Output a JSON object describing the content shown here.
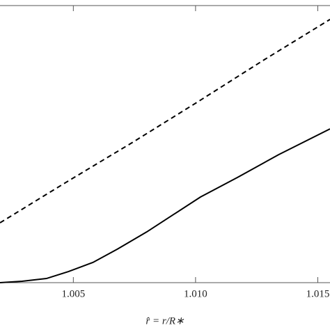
{
  "chart_data": {
    "type": "line",
    "x_label": "r̂ = r/R∗",
    "xlim": [
      1.002,
      1.0155
    ],
    "xticks": [
      1.005,
      {
        "value": 1.01,
        "label": "1.010"
      },
      1.015
    ],
    "ylim": [
      0,
      1
    ],
    "series": [
      {
        "color": "#000000",
        "line_style": "dashed",
        "x": [
          1.002,
          1.0047,
          1.0074,
          1.0101,
          1.0128,
          1.0155
        ],
        "values": [
          0.216,
          0.362,
          0.505,
          0.653,
          0.804,
          0.95
        ]
      },
      {
        "color": "#000000",
        "line_style": "solid",
        "x": [
          1.002,
          1.0029,
          1.0039,
          1.0048,
          1.0058,
          1.0068,
          1.008,
          1.0091,
          1.0102,
          1.0117,
          1.0134,
          1.0155
        ],
        "values": [
          0,
          0.005,
          0.015,
          0.04,
          0.073,
          0.121,
          0.183,
          0.246,
          0.309,
          0.379,
          0.462,
          0.555
        ]
      }
    ]
  }
}
